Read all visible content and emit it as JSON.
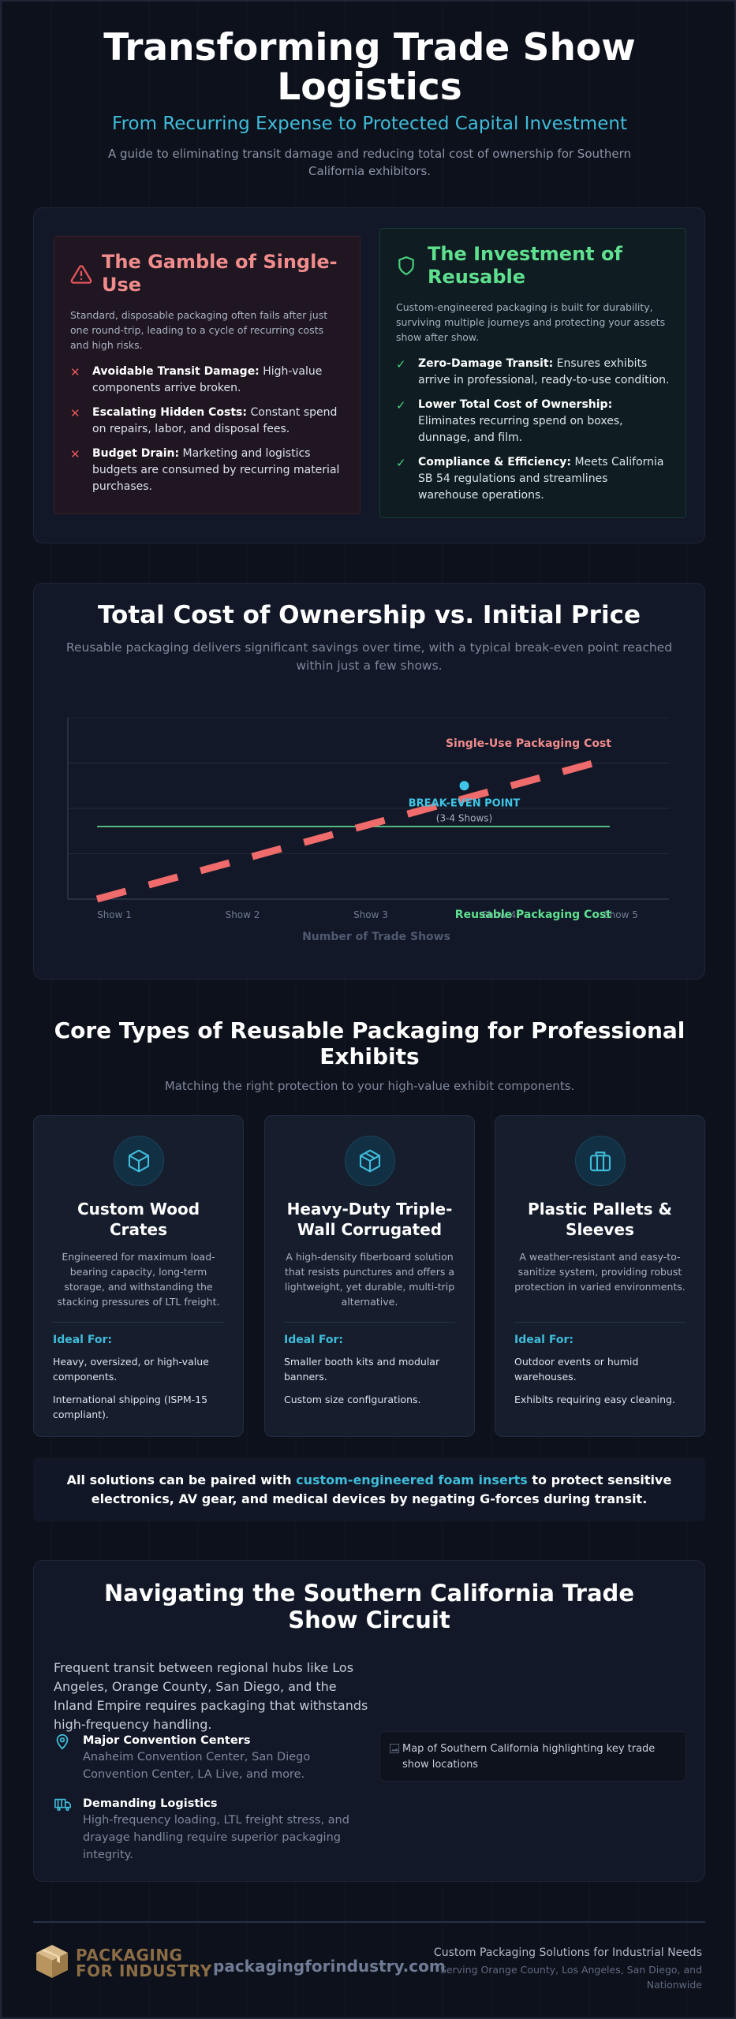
{
  "hero": {
    "title": "Transforming Trade Show Logistics",
    "subtitle": "From Recurring Expense to Protected Capital Investment",
    "description": "A guide to eliminating transit damage and reducing total cost of ownership for Southern California exhibitors."
  },
  "comparison": {
    "gamble": {
      "title": "The Gamble of Single-Use",
      "icon": "warning-triangle-icon",
      "lead": "Standard, disposable packaging often fails after just one round-trip, leading to a cycle of recurring costs and high risks.",
      "items": [
        {
          "bold": "Avoidable Transit Damage:",
          "text": " High-value components arrive broken."
        },
        {
          "bold": "Escalating Hidden Costs:",
          "text": " Constant spend on repairs, labor, and disposal fees."
        },
        {
          "bold": "Budget Drain:",
          "text": " Marketing and logistics budgets are consumed by recurring material purchases."
        }
      ],
      "color": "#f08c8c"
    },
    "investment": {
      "title": "The Investment of Reusable",
      "icon": "shield-icon",
      "lead": "Custom-engineered packaging is built for durability, surviving multiple journeys and protecting your assets show after show.",
      "items": [
        {
          "bold": "Zero-Damage Transit:",
          "text": " Ensures exhibits arrive in professional, ready-to-use condition."
        },
        {
          "bold": "Lower Total Cost of Ownership:",
          "text": " Eliminates recurring spend on boxes, dunnage, and film."
        },
        {
          "bold": "Compliance & Efficiency:",
          "text": " Meets California SB 54 regulations and streamlines warehouse operations."
        }
      ],
      "color": "#5fe08f"
    }
  },
  "tco": {
    "title": "Total Cost of Ownership vs. Initial Price",
    "subtitle": "Reusable packaging delivers significant savings over time, with a typical break-even point reached within just a few shows."
  },
  "chart_data": {
    "type": "line",
    "title": "",
    "xlabel": "Number of Trade Shows",
    "ylabel": "",
    "categories": [
      "Show 1",
      "Show 2",
      "Show 3",
      "Show 4",
      "Show 5"
    ],
    "visible_tick_labels": [
      "Show 1",
      "Show 2",
      "Show 3"
    ],
    "ylim": [
      0,
      4
    ],
    "grid": true,
    "series": [
      {
        "name": "Single-Use Packaging Cost",
        "values": [
          0.0,
          1.1,
          2.2,
          3.1,
          3.0
        ],
        "color": "#f06b6b",
        "style": "dashed"
      },
      {
        "name": "Reusable Packaging Cost",
        "values": [
          1.6,
          1.6,
          1.6,
          1.6,
          1.6
        ],
        "color": "#5fd08a",
        "style": "solid"
      }
    ],
    "annotations": [
      {
        "label": "BREAK-EVEN POINT",
        "sublabel": "(3-4 Shows)",
        "x": 3.5,
        "y": 2.5,
        "color": "#3fc6e6"
      }
    ]
  },
  "types": {
    "title": "Core Types of Reusable Packaging for Professional Exhibits",
    "subtitle": "Matching the right protection to your high-value exhibit components.",
    "ideal_label": "Ideal For:",
    "cards": [
      {
        "icon": "cube-icon",
        "title": "Custom Wood Crates",
        "desc": "Engineered for maximum load-bearing capacity, long-term storage, and withstanding the stacking pressures of LTL freight.",
        "ideal": [
          "Heavy, oversized, or high-value components.",
          "International shipping (ISPM-15 compliant)."
        ]
      },
      {
        "icon": "box-icon",
        "title": "Heavy-Duty Triple-Wall Corrugated",
        "desc": "A high-density fiberboard solution that resists punctures and offers a lightweight, yet durable, multi-trip alternative.",
        "ideal": [
          "Smaller booth kits and modular banners.",
          "Custom size configurations."
        ]
      },
      {
        "icon": "briefcase-icon",
        "title": "Plastic Pallets & Sleeves",
        "desc": "A weather-resistant and easy-to-sanitize system, providing robust protection in varied environments.",
        "ideal": [
          "Outdoor events or humid warehouses.",
          "Exhibits requiring easy cleaning."
        ]
      }
    ]
  },
  "note": {
    "before": "All solutions can be paired with ",
    "highlight": "custom-engineered foam inserts",
    "after": " to protect sensitive electronics, AV gear, and medical devices by negating G-forces during transit."
  },
  "socal": {
    "title": "Navigating the Southern California Trade Show Circuit",
    "intro": "Frequent transit between regional hubs like Los Angeles, Orange County, San Diego, and the Inland Empire requires packaging that withstands high-frequency handling.",
    "features": [
      {
        "icon": "map-pin-icon",
        "title": "Major Convention Centers",
        "text": "Anaheim Convention Center, San Diego Convention Center, LA Live, and more."
      },
      {
        "icon": "truck-icon",
        "title": "Demanding Logistics",
        "text": "High-frequency loading, LTL freight stress, and drayage handling require superior packaging integrity."
      }
    ],
    "map_alt": "Map of Southern California highlighting key trade show locations"
  },
  "footer": {
    "logo_line1": "PACKAGING",
    "logo_line2": "FOR INDUSTRY",
    "domain": "packagingforindustry.com",
    "tagline": "Custom Packaging Solutions for Industrial Needs",
    "service_area": "Serving Orange County, Los Angeles, San Diego, and Nationwide"
  }
}
